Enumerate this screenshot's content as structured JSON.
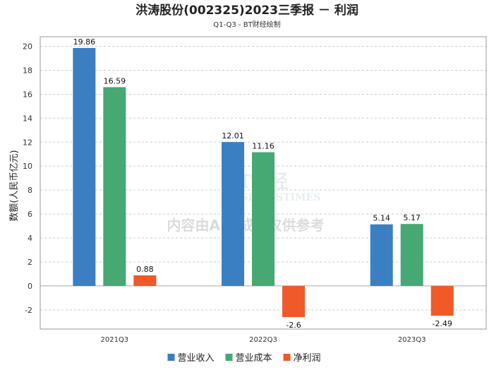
{
  "chart_data": {
    "type": "bar",
    "title": "洪涛股份(002325)2023三季报 － 利润",
    "subtitle": "Q1-Q3 - BT财经绘制",
    "xlabel": "",
    "ylabel": "数额(人民币亿元)",
    "ylim": [
      -3.6,
      20.8
    ],
    "yticks": [
      -2,
      0,
      2,
      4,
      6,
      8,
      10,
      12,
      14,
      16,
      18,
      20
    ],
    "grid": true,
    "legend_position": "bottom",
    "categories": [
      "2021Q3",
      "2022Q3",
      "2023Q3"
    ],
    "series": [
      {
        "name": "营业收入",
        "color": "#3a7fc1",
        "values": [
          19.86,
          12.01,
          5.14
        ]
      },
      {
        "name": "营业成本",
        "color": "#46a872",
        "values": [
          16.59,
          11.16,
          5.17
        ]
      },
      {
        "name": "净利润",
        "color": "#f05a28",
        "values": [
          0.88,
          -2.6,
          -2.49
        ]
      }
    ]
  },
  "watermark": {
    "logo": "BT财经",
    "logo_sub": "BUSINESSTIMES",
    "text": "内容由AI生成，仅供参考"
  }
}
